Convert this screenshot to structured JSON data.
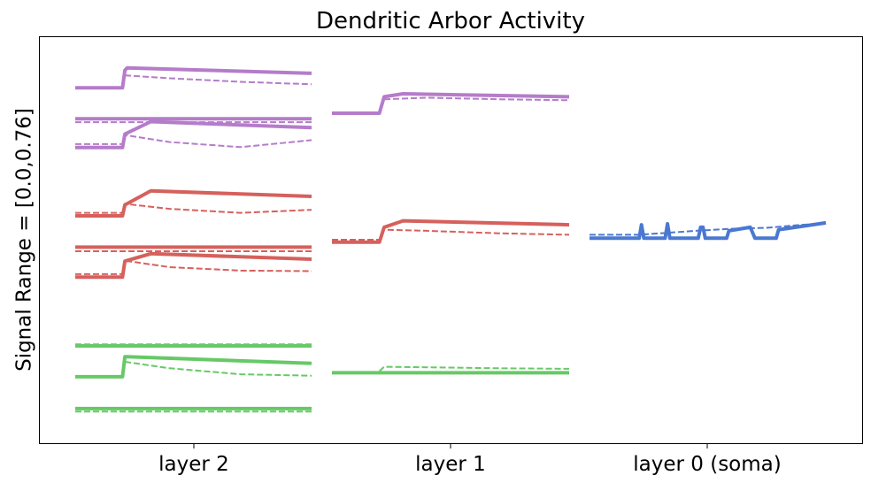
{
  "chart_data": {
    "type": "line",
    "title": "Dendritic Arbor Activity",
    "ylabel": "Signal Range = [0.0,0.76]",
    "xlabel": "",
    "categories": [
      "layer 2",
      "layer 1",
      "layer 0 (soma)"
    ],
    "colors": {
      "purple": "#b57cc9",
      "red": "#d6605c",
      "green": "#66c966",
      "blue": "#4a78d1"
    },
    "panel_x_range": [
      0,
      100
    ],
    "y_range": [
      0,
      0.76
    ],
    "series": [
      {
        "name": "layer2-purple-1",
        "column": 0,
        "color": "purple",
        "solid": [
          [
            0,
            0.685
          ],
          [
            20,
            0.685
          ],
          [
            21,
            0.72
          ],
          [
            22,
            0.725
          ],
          [
            100,
            0.714
          ]
        ],
        "dashed": [
          [
            21,
            0.71
          ],
          [
            40,
            0.704
          ],
          [
            70,
            0.697
          ],
          [
            100,
            0.692
          ]
        ]
      },
      {
        "name": "layer2-purple-2",
        "column": 0,
        "color": "purple",
        "solid": [
          [
            0,
            0.623
          ],
          [
            100,
            0.623
          ]
        ],
        "dashed": [
          [
            0,
            0.616
          ],
          [
            100,
            0.616
          ]
        ]
      },
      {
        "name": "layer2-purple-3",
        "column": 0,
        "color": "purple",
        "solid": [
          [
            0,
            0.565
          ],
          [
            20,
            0.565
          ],
          [
            21,
            0.592
          ],
          [
            32,
            0.617
          ],
          [
            100,
            0.605
          ]
        ],
        "dashed": [
          [
            0,
            0.572
          ],
          [
            20,
            0.572
          ],
          [
            21,
            0.59
          ],
          [
            40,
            0.576
          ],
          [
            70,
            0.566
          ],
          [
            100,
            0.58
          ]
        ]
      },
      {
        "name": "layer2-red-1",
        "column": 0,
        "color": "red",
        "solid": [
          [
            0,
            0.428
          ],
          [
            20,
            0.428
          ],
          [
            21,
            0.45
          ],
          [
            32,
            0.478
          ],
          [
            100,
            0.467
          ]
        ],
        "dashed": [
          [
            0,
            0.434
          ],
          [
            20,
            0.434
          ],
          [
            21,
            0.452
          ],
          [
            40,
            0.442
          ],
          [
            70,
            0.434
          ],
          [
            100,
            0.44
          ]
        ]
      },
      {
        "name": "layer2-red-2",
        "column": 0,
        "color": "red",
        "solid": [
          [
            0,
            0.365
          ],
          [
            100,
            0.365
          ]
        ],
        "dashed": [
          [
            0,
            0.357
          ],
          [
            100,
            0.357
          ]
        ]
      },
      {
        "name": "layer2-red-3",
        "column": 0,
        "color": "red",
        "solid": [
          [
            0,
            0.305
          ],
          [
            20,
            0.305
          ],
          [
            21,
            0.337
          ],
          [
            32,
            0.352
          ],
          [
            100,
            0.341
          ]
        ],
        "dashed": [
          [
            0,
            0.311
          ],
          [
            20,
            0.311
          ],
          [
            21,
            0.338
          ],
          [
            40,
            0.325
          ],
          [
            70,
            0.318
          ],
          [
            100,
            0.317
          ]
        ]
      },
      {
        "name": "layer2-green-1",
        "column": 0,
        "color": "green",
        "solid": [
          [
            0,
            0.167
          ],
          [
            100,
            0.167
          ]
        ],
        "dashed": [
          [
            0,
            0.17
          ],
          [
            100,
            0.17
          ]
        ]
      },
      {
        "name": "layer2-green-2",
        "column": 0,
        "color": "green",
        "solid": [
          [
            0,
            0.105
          ],
          [
            20,
            0.105
          ],
          [
            21,
            0.145
          ],
          [
            22,
            0.145
          ],
          [
            100,
            0.132
          ]
        ],
        "dashed": [
          [
            21,
            0.135
          ],
          [
            40,
            0.122
          ],
          [
            70,
            0.11
          ],
          [
            100,
            0.107
          ]
        ]
      },
      {
        "name": "layer2-green-3",
        "column": 0,
        "color": "green",
        "solid": [
          [
            0,
            0.041
          ],
          [
            100,
            0.041
          ]
        ],
        "dashed": [
          [
            0,
            0.035
          ],
          [
            100,
            0.035
          ]
        ]
      },
      {
        "name": "layer1-purple",
        "column": 1,
        "color": "purple",
        "solid": [
          [
            0,
            0.634
          ],
          [
            20,
            0.634
          ],
          [
            22,
            0.667
          ],
          [
            30,
            0.673
          ],
          [
            100,
            0.667
          ]
        ],
        "dashed": [
          [
            22,
            0.662
          ],
          [
            40,
            0.665
          ],
          [
            70,
            0.662
          ],
          [
            100,
            0.66
          ]
        ]
      },
      {
        "name": "layer1-red",
        "column": 1,
        "color": "red",
        "solid": [
          [
            0,
            0.375
          ],
          [
            20,
            0.375
          ],
          [
            22,
            0.405
          ],
          [
            30,
            0.418
          ],
          [
            100,
            0.41
          ]
        ],
        "dashed": [
          [
            0,
            0.38
          ],
          [
            20,
            0.38
          ],
          [
            22,
            0.4
          ],
          [
            40,
            0.398
          ],
          [
            70,
            0.393
          ],
          [
            100,
            0.39
          ]
        ]
      },
      {
        "name": "layer1-green",
        "column": 1,
        "color": "green",
        "solid": [
          [
            0,
            0.113
          ],
          [
            100,
            0.113
          ]
        ],
        "dashed": [
          [
            20,
            0.116
          ],
          [
            22,
            0.125
          ],
          [
            40,
            0.124
          ],
          [
            70,
            0.122
          ],
          [
            100,
            0.121
          ]
        ]
      },
      {
        "name": "layer0-blue",
        "column": 2,
        "color": "blue",
        "solid": [
          [
            0,
            0.383
          ],
          [
            21,
            0.383
          ],
          [
            22,
            0.41
          ],
          [
            23,
            0.383
          ],
          [
            32,
            0.383
          ],
          [
            33,
            0.412
          ],
          [
            34,
            0.383
          ],
          [
            46,
            0.383
          ],
          [
            47,
            0.405
          ],
          [
            48,
            0.405
          ],
          [
            49,
            0.383
          ],
          [
            58,
            0.383
          ],
          [
            59,
            0.398
          ],
          [
            68,
            0.405
          ],
          [
            70,
            0.383
          ],
          [
            79,
            0.383
          ],
          [
            80,
            0.4
          ],
          [
            100,
            0.414
          ]
        ],
        "dashed": [
          [
            0,
            0.39
          ],
          [
            21,
            0.39
          ],
          [
            30,
            0.393
          ],
          [
            45,
            0.398
          ],
          [
            60,
            0.402
          ],
          [
            75,
            0.404
          ],
          [
            90,
            0.41
          ],
          [
            100,
            0.413
          ]
        ]
      }
    ]
  }
}
